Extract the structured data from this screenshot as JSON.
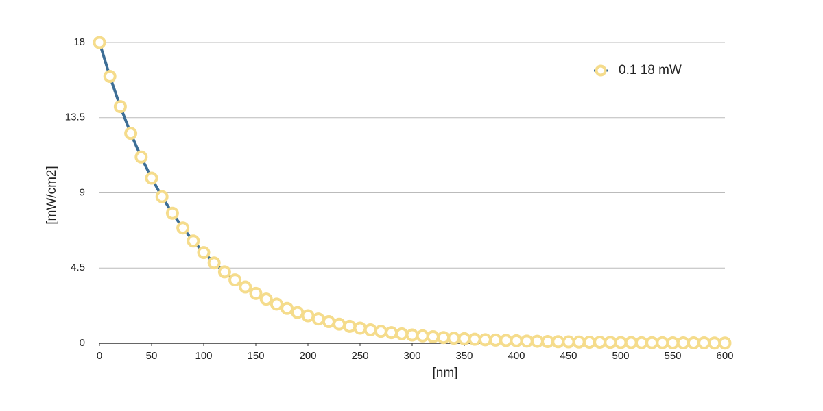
{
  "chart_data": {
    "type": "line",
    "x_label": "[nm]",
    "y_label": "[mW/cm2]",
    "x": [
      0,
      10,
      20,
      30,
      40,
      50,
      60,
      70,
      80,
      90,
      100,
      110,
      120,
      130,
      140,
      150,
      160,
      170,
      180,
      190,
      200,
      210,
      220,
      230,
      240,
      250,
      260,
      270,
      280,
      290,
      300,
      310,
      320,
      330,
      340,
      350,
      360,
      370,
      380,
      390,
      400,
      410,
      420,
      430,
      440,
      450,
      460,
      470,
      480,
      490,
      500,
      510,
      520,
      530,
      540,
      550,
      560,
      570,
      580,
      590,
      600
    ],
    "series": [
      {
        "name": "0.1 18 mW",
        "color": "#3d6e96",
        "marker_color": "#f5dc8c",
        "values": [
          18,
          15.97,
          14.16,
          12.56,
          11.14,
          9.88,
          8.77,
          7.78,
          6.9,
          6.12,
          5.43,
          4.81,
          4.27,
          3.79,
          3.36,
          2.98,
          2.64,
          2.34,
          2.08,
          1.84,
          1.64,
          1.45,
          1.29,
          1.14,
          1.01,
          0.9,
          0.8,
          0.71,
          0.63,
          0.56,
          0.49,
          0.44,
          0.39,
          0.34,
          0.3,
          0.27,
          0.24,
          0.21,
          0.19,
          0.17,
          0.15,
          0.13,
          0.12,
          0.1,
          0.09,
          0.08,
          0.07,
          0.06,
          0.06,
          0.05,
          0.04,
          0.04,
          0.03,
          0.03,
          0.03,
          0.02,
          0.02,
          0.02,
          0.02,
          0.01,
          0.01
        ]
      }
    ],
    "xlim": [
      0,
      600
    ],
    "xticks": [
      0,
      50,
      100,
      150,
      200,
      250,
      300,
      350,
      400,
      450,
      500,
      550,
      600
    ],
    "ylim": [
      0,
      18
    ],
    "yticks": [
      0,
      4.5,
      9,
      13.5,
      18
    ],
    "grid": true,
    "legend": "top-right"
  }
}
